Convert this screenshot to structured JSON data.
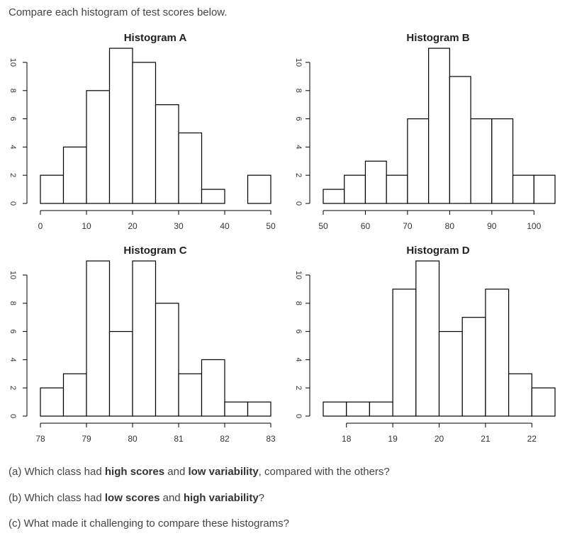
{
  "intro": "Compare each histogram of test scores below.",
  "chart_data": [
    {
      "type": "bar",
      "title": "Histogram A",
      "bin_edges": [
        0,
        5,
        10,
        15,
        20,
        25,
        30,
        35,
        40,
        45,
        50
      ],
      "counts": [
        2,
        4,
        8,
        11,
        10,
        7,
        5,
        1,
        0,
        2
      ],
      "xticks": [
        0,
        10,
        20,
        30,
        40,
        50
      ],
      "xlim": [
        0,
        50
      ],
      "yticks": [
        0,
        2,
        4,
        6,
        8,
        10
      ],
      "ylim": [
        0,
        11
      ],
      "xlabel": "",
      "ylabel": "",
      "grid": false
    },
    {
      "type": "bar",
      "title": "Histogram B",
      "bin_edges": [
        50,
        55,
        60,
        65,
        70,
        75,
        80,
        85,
        90,
        95,
        100,
        105
      ],
      "counts": [
        1,
        2,
        3,
        2,
        6,
        11,
        9,
        6,
        6,
        2,
        2
      ],
      "xticks": [
        50,
        60,
        70,
        80,
        90,
        100
      ],
      "xlim": [
        50,
        105
      ],
      "yticks": [
        0,
        2,
        4,
        6,
        8,
        10
      ],
      "ylim": [
        0,
        11
      ],
      "xlabel": "",
      "ylabel": "",
      "grid": false
    },
    {
      "type": "bar",
      "title": "Histogram C",
      "bin_edges": [
        78,
        78.5,
        79,
        79.5,
        80,
        80.5,
        81,
        81.5,
        82,
        82.5,
        83
      ],
      "counts": [
        2,
        3,
        11,
        6,
        11,
        8,
        3,
        4,
        1,
        1
      ],
      "xticks": [
        78,
        79,
        80,
        81,
        82,
        83
      ],
      "xlim": [
        78,
        83
      ],
      "yticks": [
        0,
        2,
        4,
        6,
        8,
        10
      ],
      "ylim": [
        0,
        11
      ],
      "xlabel": "",
      "ylabel": "",
      "grid": false
    },
    {
      "type": "bar",
      "title": "Histogram D",
      "bin_edges": [
        17.5,
        18,
        18.5,
        19,
        19.5,
        20,
        20.5,
        21,
        21.5,
        22,
        22.5
      ],
      "counts": [
        1,
        1,
        1,
        9,
        11,
        6,
        7,
        9,
        3,
        2
      ],
      "xticks": [
        18,
        19,
        20,
        21,
        22
      ],
      "xlim": [
        17.5,
        22.5
      ],
      "yticks": [
        0,
        2,
        4,
        6,
        8,
        10
      ],
      "ylim": [
        0,
        11
      ],
      "xlabel": "",
      "ylabel": "",
      "grid": false
    }
  ],
  "questions": [
    {
      "parts": [
        {
          "text": "(a) Which class had ",
          "bold": false
        },
        {
          "text": "high scores",
          "bold": true
        },
        {
          "text": " and ",
          "bold": false
        },
        {
          "text": "low variability",
          "bold": true
        },
        {
          "text": ", compared with the others?",
          "bold": false
        }
      ]
    },
    {
      "parts": [
        {
          "text": "(b) Which class had ",
          "bold": false
        },
        {
          "text": "low scores",
          "bold": true
        },
        {
          "text": " and ",
          "bold": false
        },
        {
          "text": "high variability",
          "bold": true
        },
        {
          "text": "?",
          "bold": false
        }
      ]
    },
    {
      "parts": [
        {
          "text": "(c) What made it challenging to compare these histograms?",
          "bold": false
        }
      ]
    }
  ]
}
